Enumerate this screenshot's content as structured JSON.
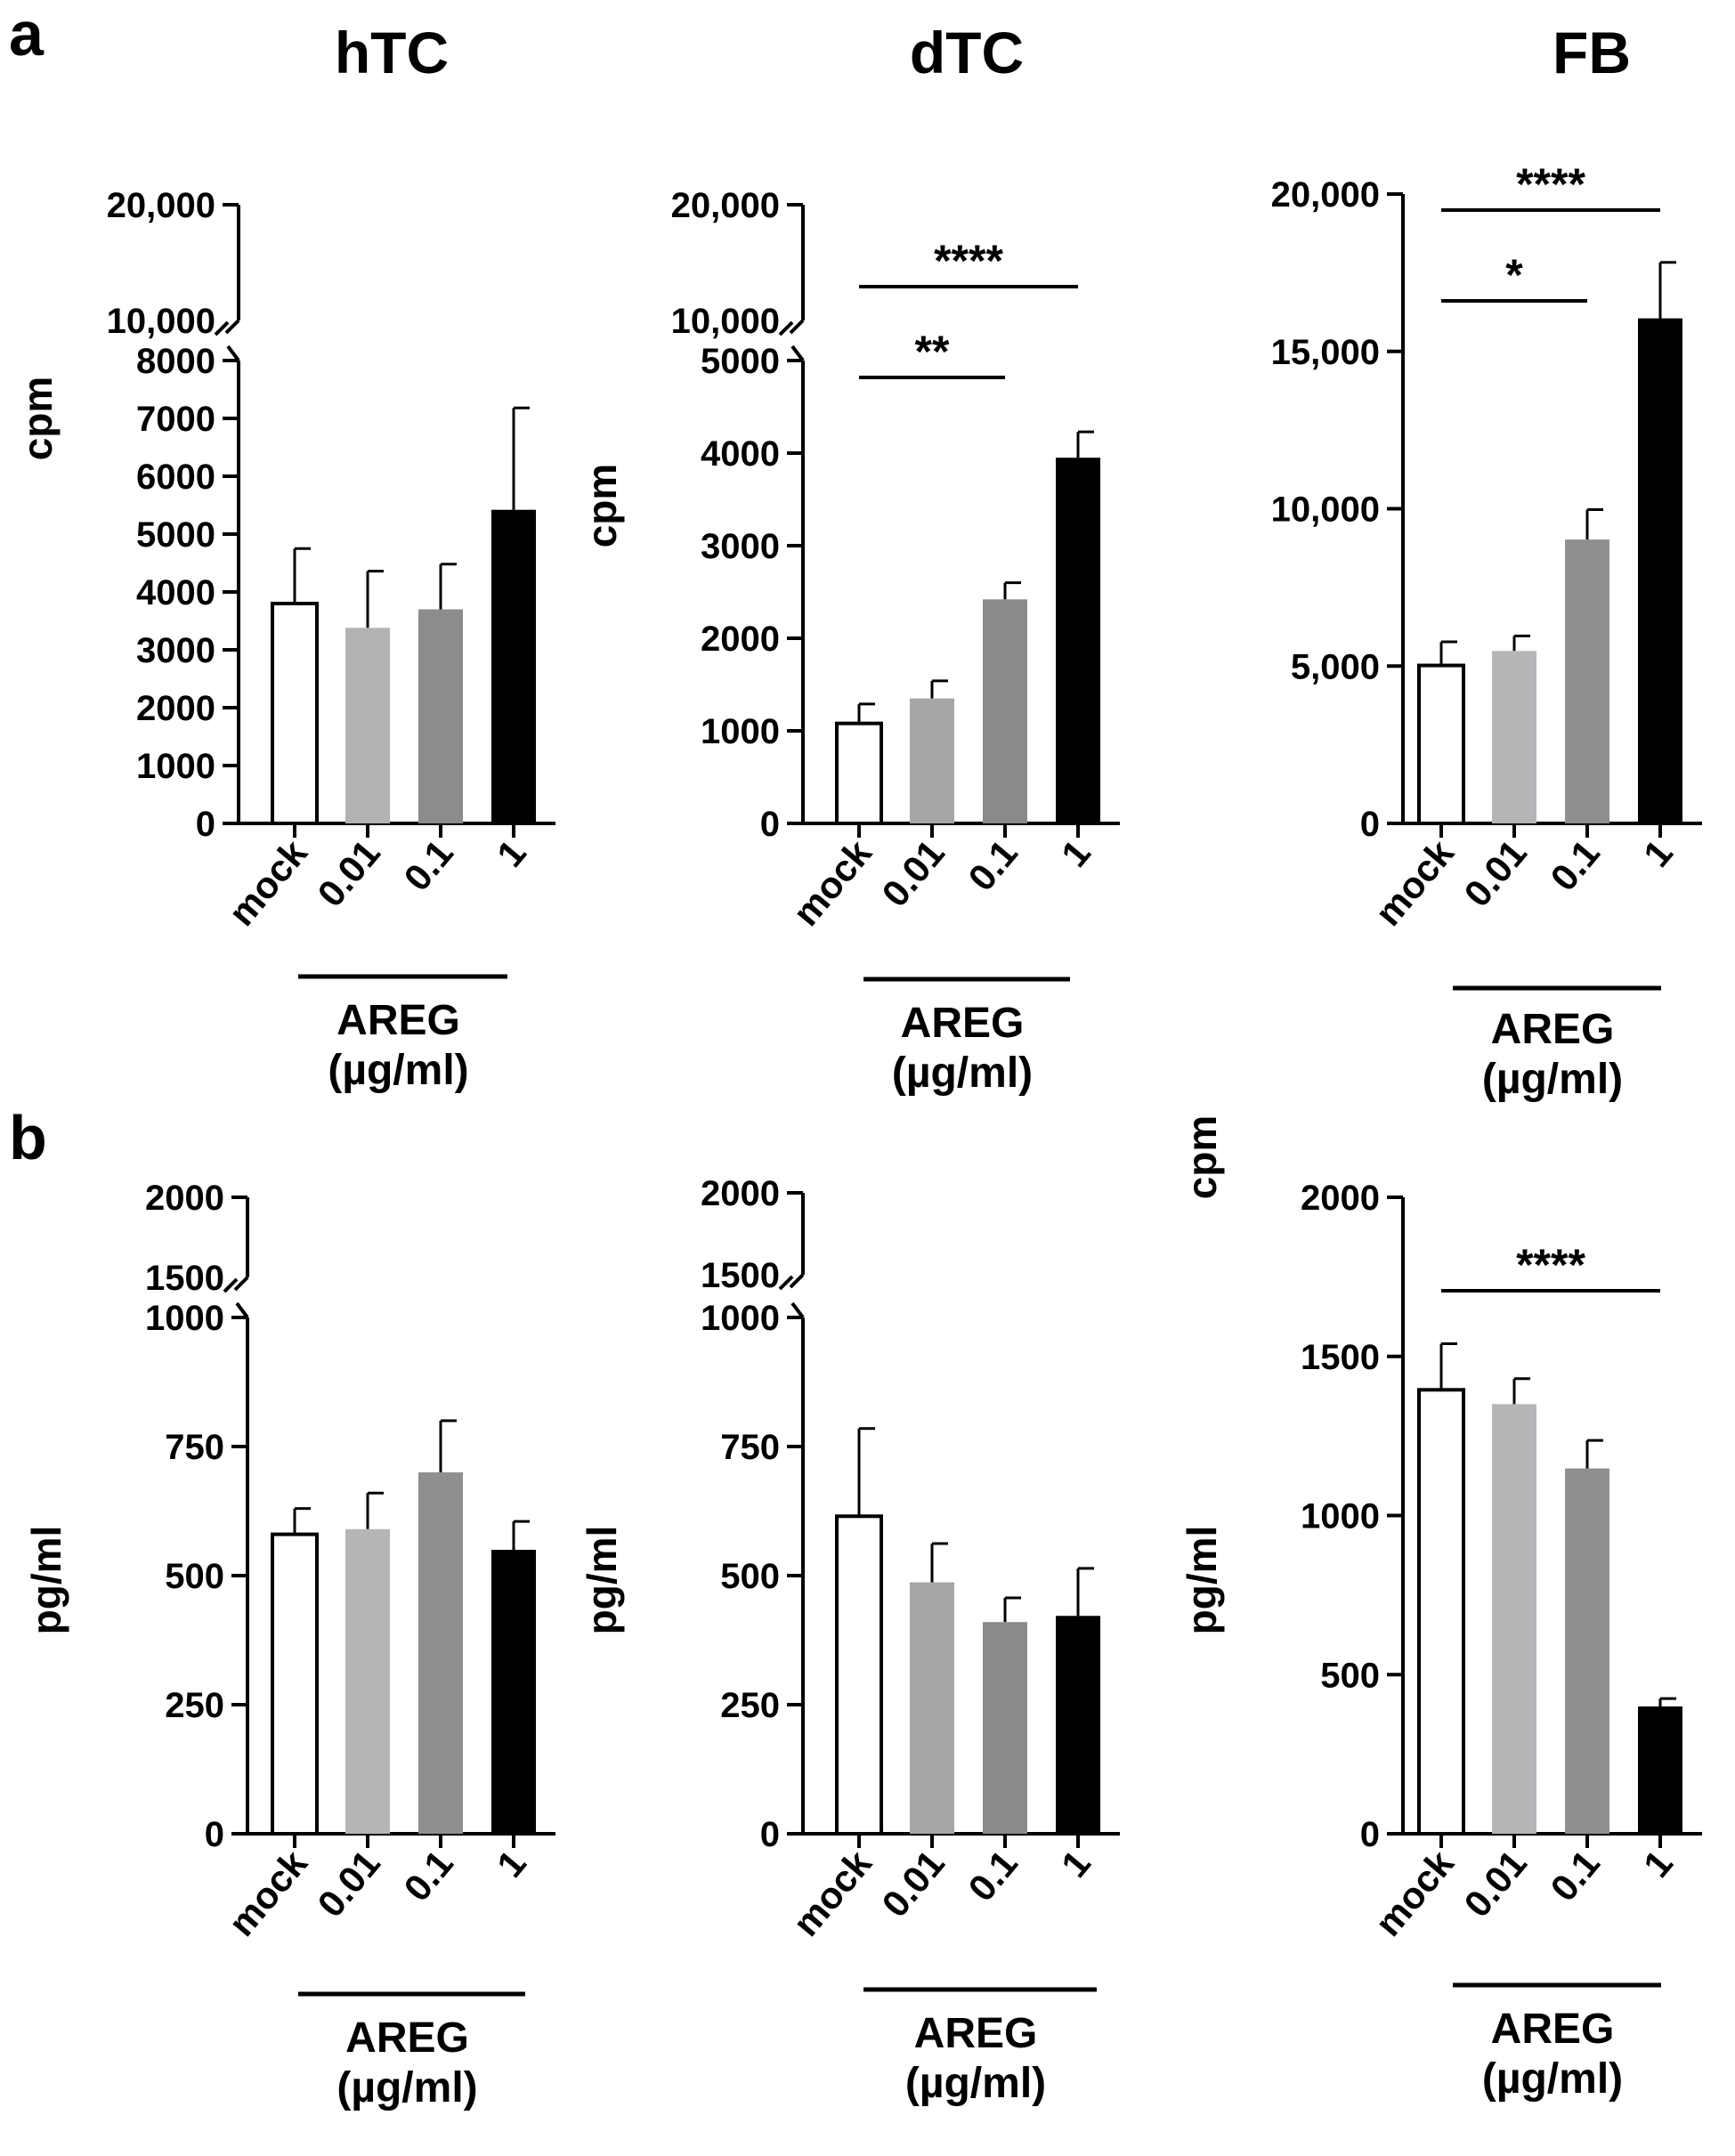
{
  "figure": {
    "panel_labels": [
      "a",
      "b"
    ],
    "column_titles": [
      "hTC",
      "dTC",
      "FB"
    ]
  },
  "chart_data": [
    {
      "id": "a-hTC",
      "panel": "a",
      "type": "bar",
      "title": "hTC",
      "ylabel": "cpm",
      "xgroup_label": [
        "AREG",
        "(µg/ml)"
      ],
      "categories": [
        "mock",
        "0.01",
        "0.1",
        "1"
      ],
      "values": [
        3800,
        3380,
        3700,
        5420
      ],
      "errors": [
        950,
        980,
        780,
        1760
      ],
      "bar_colors": [
        "#ffffff",
        "#b2b2b5",
        "#8c8c8c",
        "#000000"
      ],
      "axis_break": true,
      "lower_ticks": [
        "0",
        "1000",
        "2000",
        "3000",
        "4000",
        "5000",
        "6000",
        "7000",
        "8000"
      ],
      "lower_ylim": [
        0,
        8000
      ],
      "upper_ticks": [
        "10,000",
        "20,000"
      ],
      "upper_ylim": [
        10000,
        20000
      ],
      "significance": []
    },
    {
      "id": "a-dTC",
      "panel": "a",
      "type": "bar",
      "title": "dTC",
      "ylabel": "cpm",
      "xgroup_label": [
        "AREG",
        "(µg/ml)"
      ],
      "categories": [
        "mock",
        "0.01",
        "0.1",
        "1"
      ],
      "values": [
        1080,
        1350,
        2420,
        3950
      ],
      "errors": [
        210,
        190,
        180,
        280
      ],
      "bar_colors": [
        "#ffffff",
        "#a6a6a9",
        "#8a8a8a",
        "#000000"
      ],
      "axis_break": true,
      "lower_ticks": [
        "0",
        "1000",
        "2000",
        "3000",
        "4000",
        "5000"
      ],
      "lower_ylim": [
        0,
        5000
      ],
      "upper_ticks": [
        "10,000",
        "20,000"
      ],
      "upper_ylim": [
        10000,
        20000
      ],
      "significance": [
        {
          "from": 0,
          "to": 2,
          "label": "**"
        },
        {
          "from": 0,
          "to": 3,
          "label": "****"
        }
      ]
    },
    {
      "id": "a-FB",
      "panel": "a",
      "type": "bar",
      "title": "FB",
      "ylabel": "cpm",
      "xgroup_label": [
        "AREG",
        "(µg/ml)"
      ],
      "categories": [
        "mock",
        "0.01",
        "0.1",
        "1"
      ],
      "values": [
        5020,
        5480,
        9020,
        16050
      ],
      "errors": [
        750,
        480,
        950,
        1780
      ],
      "bar_colors": [
        "#ffffff",
        "#b5b5b8",
        "#8f8f8f",
        "#000000"
      ],
      "axis_break": false,
      "ticks": [
        "0",
        "5,000",
        "10,000",
        "15,000",
        "20,000"
      ],
      "ylim": [
        0,
        20000
      ],
      "significance": [
        {
          "from": 0,
          "to": 2,
          "label": "*"
        },
        {
          "from": 0,
          "to": 3,
          "label": "****"
        }
      ]
    },
    {
      "id": "b-hTC",
      "panel": "b",
      "type": "bar",
      "title": "",
      "ylabel": "pg/ml",
      "xgroup_label": [
        "AREG",
        "(µg/ml)"
      ],
      "categories": [
        "mock",
        "0.01",
        "0.1",
        "1"
      ],
      "values": [
        580,
        590,
        700,
        550
      ],
      "errors": [
        50,
        70,
        100,
        55
      ],
      "bar_colors": [
        "#ffffff",
        "#b5b5b8",
        "#8f8f8f",
        "#000000"
      ],
      "axis_break": true,
      "lower_ticks": [
        "0",
        "250",
        "500",
        "750",
        "1000"
      ],
      "lower_ylim": [
        0,
        1000
      ],
      "upper_ticks": [
        "1500",
        "2000"
      ],
      "upper_ylim": [
        1500,
        2000
      ],
      "significance": []
    },
    {
      "id": "b-dTC",
      "panel": "b",
      "type": "bar",
      "title": "",
      "ylabel": "pg/ml",
      "xgroup_label": [
        "AREG",
        "(µg/ml)"
      ],
      "categories": [
        "mock",
        "0.01",
        "0.1",
        "1"
      ],
      "values": [
        615,
        487,
        410,
        422
      ],
      "errors": [
        170,
        75,
        47,
        92
      ],
      "bar_colors": [
        "#ffffff",
        "#a6a6a9",
        "#8a8a8a",
        "#000000"
      ],
      "axis_break": true,
      "lower_ticks": [
        "0",
        "250",
        "500",
        "750",
        "1000"
      ],
      "lower_ylim": [
        0,
        1000
      ],
      "upper_ticks": [
        "1500",
        "2000"
      ],
      "upper_ylim": [
        1500,
        2000
      ],
      "significance": []
    },
    {
      "id": "b-FB",
      "panel": "b",
      "type": "bar",
      "title": "",
      "ylabel": "pg/ml",
      "xgroup_label": [
        "AREG",
        "(µg/ml)"
      ],
      "categories": [
        "mock",
        "0.01",
        "0.1",
        "1"
      ],
      "values": [
        1395,
        1350,
        1148,
        400
      ],
      "errors": [
        145,
        80,
        88,
        25
      ],
      "bar_colors": [
        "#ffffff",
        "#b5b5b8",
        "#8f8f8f",
        "#000000"
      ],
      "axis_break": false,
      "ticks": [
        "0",
        "500",
        "1000",
        "1500",
        "2000"
      ],
      "ylim": [
        0,
        2000
      ],
      "significance": [
        {
          "from": 0,
          "to": 3,
          "label": "****"
        }
      ]
    }
  ]
}
